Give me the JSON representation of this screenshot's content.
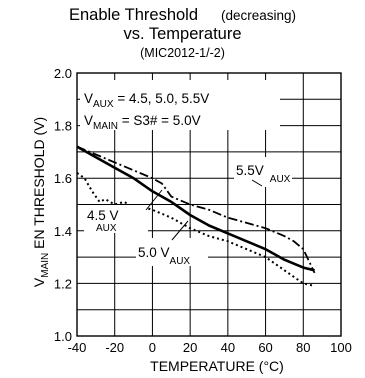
{
  "title": {
    "main": "Enable Threshold",
    "qualifier": "(decreasing)",
    "line2": "vs. Temperature",
    "part": "(MIC2012-1/-2)"
  },
  "chart_data": {
    "type": "line",
    "xlabel": "TEMPERATURE (°C)",
    "ylabel": {
      "main": "V",
      "sub": "MAIN",
      "rest": " EN THRESHOLD (V)"
    },
    "xlim": [
      -40,
      100
    ],
    "ylim": [
      1.0,
      2.0
    ],
    "x_ticks": [
      "-40",
      "-20",
      "0",
      "20",
      "40",
      "60",
      "80",
      "100"
    ],
    "y_ticks": [
      "1.0",
      "1.2",
      "1.4",
      "1.6",
      "1.8",
      "2.0"
    ],
    "grid": true,
    "annotation": {
      "line1": {
        "v": "V",
        "sub": "AUX",
        "rest": " = 4.5, 5.0, 5.5V"
      },
      "line2": {
        "v": "V",
        "sub": "MAIN",
        "rest": " = S3# = 5.0V"
      }
    },
    "series": [
      {
        "name": "4.5V AUX",
        "label": {
          "v": "4.5 V",
          "sub": "AUX"
        },
        "style": "dotted",
        "x": [
          -40,
          -36,
          -32,
          -28,
          -25,
          -20,
          -15,
          -10,
          -5,
          0,
          10,
          20,
          30,
          40,
          50,
          60,
          70,
          80,
          86
        ],
        "y": [
          1.62,
          1.6,
          1.55,
          1.51,
          1.52,
          1.5,
          1.51,
          1.49,
          1.49,
          1.48,
          1.45,
          1.41,
          1.38,
          1.36,
          1.33,
          1.3,
          1.25,
          1.2,
          1.19
        ]
      },
      {
        "name": "5.0V AUX",
        "label": {
          "v": "5.0 V",
          "sub": "AUX"
        },
        "style": "solid",
        "x": [
          -40,
          -30,
          -20,
          -10,
          0,
          10,
          20,
          30,
          40,
          50,
          60,
          70,
          80,
          86
        ],
        "y": [
          1.72,
          1.68,
          1.64,
          1.6,
          1.55,
          1.51,
          1.46,
          1.42,
          1.39,
          1.36,
          1.33,
          1.29,
          1.26,
          1.25
        ]
      },
      {
        "name": "5.5V AUX",
        "label": {
          "v": "5.5V",
          "sub": "AUX"
        },
        "style": "dashdot",
        "x": [
          -40,
          -30,
          -20,
          -10,
          0,
          5,
          10,
          20,
          30,
          40,
          50,
          60,
          70,
          75,
          80,
          86
        ],
        "y": [
          1.72,
          1.69,
          1.66,
          1.63,
          1.6,
          1.58,
          1.53,
          1.5,
          1.48,
          1.45,
          1.43,
          1.41,
          1.38,
          1.36,
          1.33,
          1.24
        ]
      }
    ]
  }
}
